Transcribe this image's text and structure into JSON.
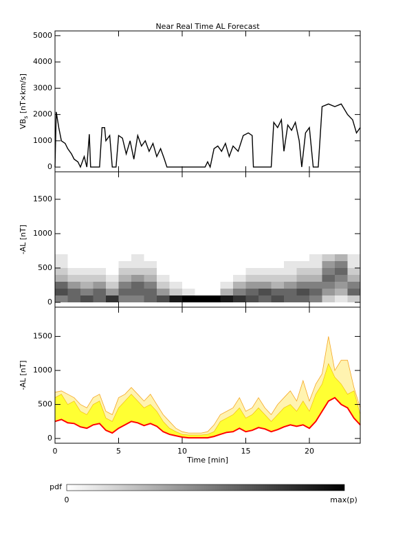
{
  "title": "Near Real Time AL Forecast",
  "chart_data": [
    {
      "type": "line",
      "ylabel": "VB",
      "ylabel_sub": "s",
      "ylabel_unit": " [nT×km/s]",
      "color": "#000000",
      "x": [
        0,
        0.1,
        0.3,
        0.5,
        0.8,
        1,
        1.3,
        1.5,
        1.8,
        2,
        2.3,
        2.5,
        2.7,
        2.8,
        3,
        3.5,
        3.7,
        3.9,
        4,
        4.3,
        4.5,
        4.8,
        5,
        5.3,
        5.6,
        5.9,
        6.2,
        6.5,
        6.8,
        7.1,
        7.4,
        7.7,
        8,
        8.3,
        8.6,
        8.8,
        9.5,
        10,
        11,
        11.8,
        12,
        12.2,
        12.5,
        12.8,
        13.1,
        13.4,
        13.7,
        14,
        14.4,
        14.8,
        15.2,
        15.5,
        15.6,
        16.5,
        17,
        17.2,
        17.5,
        17.8,
        18,
        18.3,
        18.6,
        18.9,
        19.2,
        19.4,
        19.7,
        20,
        20.3,
        20.7,
        21,
        21.5,
        22,
        22.5,
        23,
        23.4,
        23.7,
        24
      ],
      "values": [
        0,
        2100,
        1500,
        1000,
        900,
        700,
        500,
        300,
        200,
        0,
        400,
        0,
        1250,
        0,
        0,
        0,
        1500,
        1500,
        1000,
        1200,
        0,
        0,
        1200,
        1100,
        500,
        1000,
        300,
        1200,
        800,
        1000,
        600,
        900,
        400,
        700,
        300,
        0,
        0,
        0,
        0,
        0,
        200,
        0,
        700,
        800,
        600,
        900,
        400,
        800,
        600,
        1200,
        1300,
        1200,
        0,
        0,
        0,
        1700,
        1500,
        1800,
        600,
        1600,
        1400,
        1700,
        1000,
        0,
        1300,
        1500,
        0,
        0,
        2300,
        2400,
        2300,
        2400,
        2000,
        1800,
        1300,
        1500
      ],
      "xlim": [
        0,
        24
      ],
      "xticks": [
        0,
        5,
        10,
        15,
        20
      ],
      "ylim": [
        -180,
        5180
      ],
      "yticks": [
        0,
        1000,
        2000,
        3000,
        4000,
        5000
      ]
    },
    {
      "type": "heatmap",
      "ylabel": "-AL [nT]",
      "x_edges": [
        0,
        1,
        2,
        3,
        4,
        5,
        6,
        7,
        8,
        9,
        10,
        11,
        12,
        13,
        14,
        15,
        16,
        17,
        18,
        19,
        20,
        21,
        22,
        23,
        24
      ],
      "y_edges": [
        0,
        100,
        200,
        300,
        400,
        500,
        600,
        700
      ],
      "z": [
        [
          0.5,
          0.6,
          0.7,
          0.6,
          0.8,
          0.5,
          0.5,
          0.6,
          0.7,
          0.9,
          1,
          1,
          1,
          0.9,
          0.8,
          0.7,
          0.6,
          0.7,
          0.6,
          0.6,
          0.5,
          0.2,
          0.1,
          0.2
        ],
        [
          0.7,
          0.6,
          0.5,
          0.6,
          0.4,
          0.6,
          0.6,
          0.6,
          0.4,
          0.2,
          0.1,
          0,
          0,
          0.3,
          0.5,
          0.6,
          0.7,
          0.6,
          0.6,
          0.7,
          0.6,
          0.4,
          0.3,
          0.6
        ],
        [
          0.6,
          0.4,
          0.3,
          0.4,
          0.2,
          0.5,
          0.6,
          0.5,
          0.2,
          0.1,
          0,
          0,
          0,
          0.1,
          0.3,
          0.4,
          0.4,
          0.3,
          0.4,
          0.5,
          0.5,
          0.5,
          0.4,
          0.5
        ],
        [
          0.3,
          0.2,
          0.2,
          0.2,
          0.1,
          0.3,
          0.4,
          0.3,
          0.1,
          0,
          0,
          0,
          0,
          0,
          0.1,
          0.2,
          0.2,
          0.2,
          0.2,
          0.3,
          0.3,
          0.6,
          0.5,
          0.3
        ],
        [
          0.2,
          0.1,
          0.1,
          0.1,
          0,
          0.2,
          0.2,
          0.2,
          0,
          0,
          0,
          0,
          0,
          0,
          0,
          0.1,
          0.1,
          0.1,
          0.1,
          0.2,
          0.2,
          0.5,
          0.6,
          0.2
        ],
        [
          0.1,
          0,
          0,
          0,
          0,
          0.1,
          0.1,
          0.1,
          0,
          0,
          0,
          0,
          0,
          0,
          0,
          0,
          0,
          0,
          0.1,
          0.1,
          0.1,
          0.4,
          0.5,
          0.1
        ],
        [
          0.1,
          0,
          0,
          0,
          0,
          0,
          0.1,
          0,
          0,
          0,
          0,
          0,
          0,
          0,
          0,
          0,
          0,
          0,
          0,
          0,
          0.1,
          0.2,
          0.3,
          0.1
        ]
      ],
      "xlim": [
        0,
        24
      ],
      "xticks": [
        0,
        5,
        10,
        15,
        20
      ],
      "ylim": [
        -70,
        1900
      ],
      "yticks": [
        0,
        500,
        1000,
        1500
      ]
    },
    {
      "type": "band",
      "ylabel": "-AL [nT]",
      "xlabel": "Time [min]",
      "x": [
        0,
        0.5,
        1,
        1.5,
        2,
        2.5,
        3,
        3.5,
        4,
        4.5,
        5,
        5.5,
        6,
        6.5,
        7,
        7.5,
        8,
        8.5,
        9,
        9.5,
        10,
        10.5,
        11,
        11.5,
        12,
        12.5,
        13,
        13.5,
        14,
        14.5,
        15,
        15.5,
        16,
        16.5,
        17,
        17.5,
        18,
        18.5,
        19,
        19.5,
        20,
        20.5,
        21,
        21.5,
        22,
        22.5,
        23,
        23.5,
        24
      ],
      "series": [
        {
          "color": "#ff0000",
          "values": [
            250,
            280,
            230,
            220,
            170,
            150,
            200,
            220,
            120,
            80,
            150,
            200,
            250,
            230,
            190,
            220,
            180,
            100,
            60,
            40,
            20,
            10,
            10,
            10,
            10,
            30,
            60,
            90,
            100,
            150,
            100,
            120,
            160,
            140,
            100,
            130,
            170,
            200,
            180,
            200,
            150,
            250,
            400,
            550,
            600,
            500,
            450,
            300,
            200
          ]
        },
        {
          "color": "#ffff33",
          "values": [
            600,
            650,
            500,
            550,
            400,
            350,
            500,
            550,
            300,
            250,
            450,
            550,
            650,
            550,
            450,
            500,
            400,
            250,
            150,
            100,
            60,
            50,
            50,
            50,
            60,
            100,
            250,
            300,
            350,
            450,
            300,
            350,
            450,
            350,
            250,
            350,
            450,
            500,
            400,
            550,
            400,
            650,
            800,
            1100,
            900,
            800,
            650,
            700,
            350
          ]
        },
        {
          "color": "#f5a623",
          "values": [
            680,
            700,
            650,
            600,
            500,
            450,
            600,
            650,
            400,
            350,
            600,
            650,
            750,
            650,
            550,
            650,
            500,
            350,
            250,
            150,
            100,
            80,
            80,
            80,
            100,
            200,
            350,
            400,
            450,
            600,
            400,
            450,
            600,
            450,
            350,
            500,
            600,
            700,
            550,
            850,
            550,
            800,
            950,
            1500,
            1000,
            1150,
            1150,
            750,
            450
          ]
        }
      ],
      "xlim": [
        0,
        24
      ],
      "xticks": [
        0,
        5,
        10,
        15,
        20
      ],
      "ylim": [
        -70,
        1930
      ],
      "yticks": [
        0,
        500,
        1000,
        1500
      ]
    }
  ],
  "colorbar": {
    "label": "pdf",
    "min_label": "0",
    "max_label": "max(p)"
  }
}
